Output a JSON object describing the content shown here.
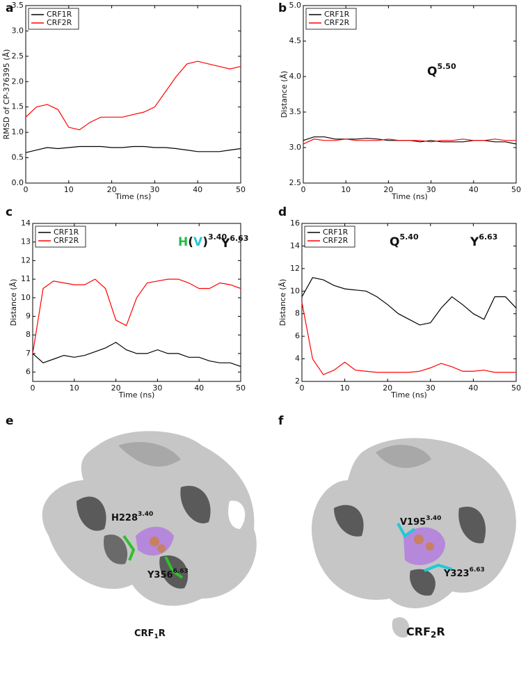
{
  "panel_labels": [
    "a",
    "b",
    "c",
    "d",
    "e",
    "f"
  ],
  "chart_data": [
    {
      "type": "line",
      "xlabel": "Time (ns)",
      "ylabel": "RMSD of CP-376395 (Å)",
      "x": [
        0,
        2.5,
        5,
        7.5,
        10,
        12.5,
        15,
        17.5,
        20,
        22.5,
        25,
        27.5,
        30,
        32.5,
        35,
        37.5,
        40,
        42.5,
        45,
        47.5,
        50
      ],
      "xlim": [
        0,
        50
      ],
      "xticks": [
        0,
        10,
        20,
        30,
        40,
        50
      ],
      "ylim": [
        0,
        3.5
      ],
      "yticks": [
        {
          "value": 0,
          "label": "0.0"
        },
        0.5,
        {
          "value": 1,
          "label": "1.0"
        },
        1.5,
        {
          "value": 2,
          "label": "2.0"
        },
        2.5,
        {
          "value": 3,
          "label": "3.0"
        },
        3.5
      ],
      "legend": "upper-left",
      "series": [
        {
          "name": "CRF1R",
          "color": "#000000",
          "values": [
            0.6,
            0.65,
            0.7,
            0.68,
            0.7,
            0.72,
            0.72,
            0.72,
            0.7,
            0.7,
            0.72,
            0.72,
            0.7,
            0.7,
            0.68,
            0.65,
            0.62,
            0.62,
            0.62,
            0.65,
            0.68
          ]
        },
        {
          "name": "CRF2R",
          "color": "#ff0000",
          "values": [
            1.3,
            1.5,
            1.55,
            1.45,
            1.1,
            1.05,
            1.2,
            1.3,
            1.3,
            1.3,
            1.35,
            1.4,
            1.5,
            1.8,
            2.1,
            2.35,
            2.4,
            2.35,
            2.3,
            2.25,
            2.3
          ]
        }
      ]
    },
    {
      "type": "line",
      "xlabel": "Time (ns)",
      "ylabel": "Distance (Å)",
      "x": [
        0,
        2.5,
        5,
        7.5,
        10,
        12.5,
        15,
        17.5,
        20,
        22.5,
        25,
        27.5,
        30,
        32.5,
        35,
        37.5,
        40,
        42.5,
        45,
        47.5,
        50
      ],
      "xlim": [
        0,
        50
      ],
      "xticks": [
        0,
        10,
        20,
        30,
        40,
        50
      ],
      "ylim": [
        2.5,
        5
      ],
      "yticks": [
        2.5,
        {
          "value": 3,
          "label": "3.0"
        },
        3.5,
        {
          "value": 4,
          "label": "4.0"
        },
        4.5,
        {
          "value": 5,
          "label": "5.0"
        }
      ],
      "legend": "upper-left",
      "annotations": [
        {
          "parts": [
            {
              "text": "Q",
              "color": "#111111"
            }
          ],
          "sup": "5.50"
        }
      ],
      "series": [
        {
          "name": "CRF1R",
          "color": "#000000",
          "values": [
            3.1,
            3.15,
            3.15,
            3.12,
            3.12,
            3.12,
            3.13,
            3.12,
            3.1,
            3.1,
            3.1,
            3.08,
            3.1,
            3.08,
            3.08,
            3.08,
            3.1,
            3.1,
            3.08,
            3.08,
            3.05
          ]
        },
        {
          "name": "CRF2R",
          "color": "#ff0000",
          "values": [
            3.05,
            3.12,
            3.1,
            3.1,
            3.12,
            3.1,
            3.1,
            3.1,
            3.12,
            3.1,
            3.1,
            3.1,
            3.08,
            3.1,
            3.1,
            3.12,
            3.1,
            3.1,
            3.12,
            3.1,
            3.1
          ]
        }
      ]
    },
    {
      "type": "line",
      "xlabel": "Time (ns)",
      "ylabel": "Distance (Å)",
      "x": [
        0,
        2.5,
        5,
        7.5,
        10,
        12.5,
        15,
        17.5,
        20,
        22.5,
        25,
        27.5,
        30,
        32.5,
        35,
        37.5,
        40,
        42.5,
        45,
        47.5,
        50
      ],
      "xlim": [
        0,
        50
      ],
      "xticks": [
        0,
        10,
        20,
        30,
        40,
        50
      ],
      "ylim": [
        5.5,
        14
      ],
      "yticks": [
        6,
        7,
        8,
        9,
        10,
        11,
        12,
        13,
        14
      ],
      "legend": "upper-left",
      "annotations": [
        {
          "parts": [
            {
              "text": "H",
              "color": "#22bb44"
            },
            {
              "text": "(",
              "color": "#111111"
            },
            {
              "text": "V",
              "color": "#22c8d8"
            },
            {
              "text": ")",
              "color": "#111111"
            }
          ],
          "sup": "3.40"
        },
        {
          "parts": [
            {
              "text": "Y",
              "color": "#111111"
            }
          ],
          "sup": "6.63"
        }
      ],
      "series": [
        {
          "name": "CRF1R",
          "color": "#000000",
          "values": [
            7,
            6.5,
            6.7,
            6.9,
            6.8,
            6.9,
            7.1,
            7.3,
            7.6,
            7.2,
            7,
            7,
            7.2,
            7,
            7,
            6.8,
            6.8,
            6.6,
            6.5,
            6.5,
            6.3
          ]
        },
        {
          "name": "CRF2R",
          "color": "#ff0000",
          "values": [
            7,
            10.5,
            10.9,
            10.8,
            10.7,
            10.7,
            11,
            10.5,
            8.8,
            8.5,
            10,
            10.8,
            10.9,
            11,
            11,
            10.8,
            10.5,
            10.5,
            10.8,
            10.7,
            10.5
          ]
        }
      ]
    },
    {
      "type": "line",
      "xlabel": "Time (ns)",
      "ylabel": "Distance (Å)",
      "x": [
        0,
        2.5,
        5,
        7.5,
        10,
        12.5,
        15,
        17.5,
        20,
        22.5,
        25,
        27.5,
        30,
        32.5,
        35,
        37.5,
        40,
        42.5,
        45,
        47.5,
        50
      ],
      "xlim": [
        0,
        50
      ],
      "xticks": [
        0,
        10,
        20,
        30,
        40,
        50
      ],
      "ylim": [
        2,
        16
      ],
      "yticks": [
        2,
        4,
        6,
        8,
        10,
        12,
        14,
        16
      ],
      "legend": "upper-left",
      "annotations": [
        {
          "parts": [
            {
              "text": "Q",
              "color": "#111111"
            }
          ],
          "sup": "5.40"
        },
        {
          "parts": [
            {
              "text": "Y",
              "color": "#111111"
            }
          ],
          "sup": "6.63"
        }
      ],
      "series": [
        {
          "name": "CRF1R",
          "color": "#000000",
          "values": [
            9.5,
            11.2,
            11,
            10.5,
            10.2,
            10.1,
            10,
            9.5,
            8.8,
            8,
            7.5,
            7,
            7.2,
            8.5,
            9.5,
            8.8,
            8,
            7.5,
            9.5,
            9.5,
            8.5
          ]
        },
        {
          "name": "CRF2R",
          "color": "#ff0000",
          "values": [
            9,
            4,
            2.6,
            3,
            3.7,
            3,
            2.9,
            2.8,
            2.8,
            2.8,
            2.8,
            2.9,
            3.2,
            3.6,
            3.3,
            2.9,
            2.9,
            3,
            2.8,
            2.8,
            2.8
          ]
        }
      ]
    }
  ],
  "structures": [
    {
      "labels": [
        {
          "text": "H228",
          "sup": "3.40"
        },
        {
          "text": "Y356",
          "sup": "6.63"
        }
      ],
      "name": {
        "text": "CRF",
        "sub": "1",
        "tail": "R"
      }
    },
    {
      "labels": [
        {
          "text": "V195",
          "sup": "3.40"
        },
        {
          "text": "Y323",
          "sup": "6.63"
        }
      ],
      "name": {
        "text": "CRF",
        "sub": "2",
        "tail": "R"
      }
    }
  ]
}
